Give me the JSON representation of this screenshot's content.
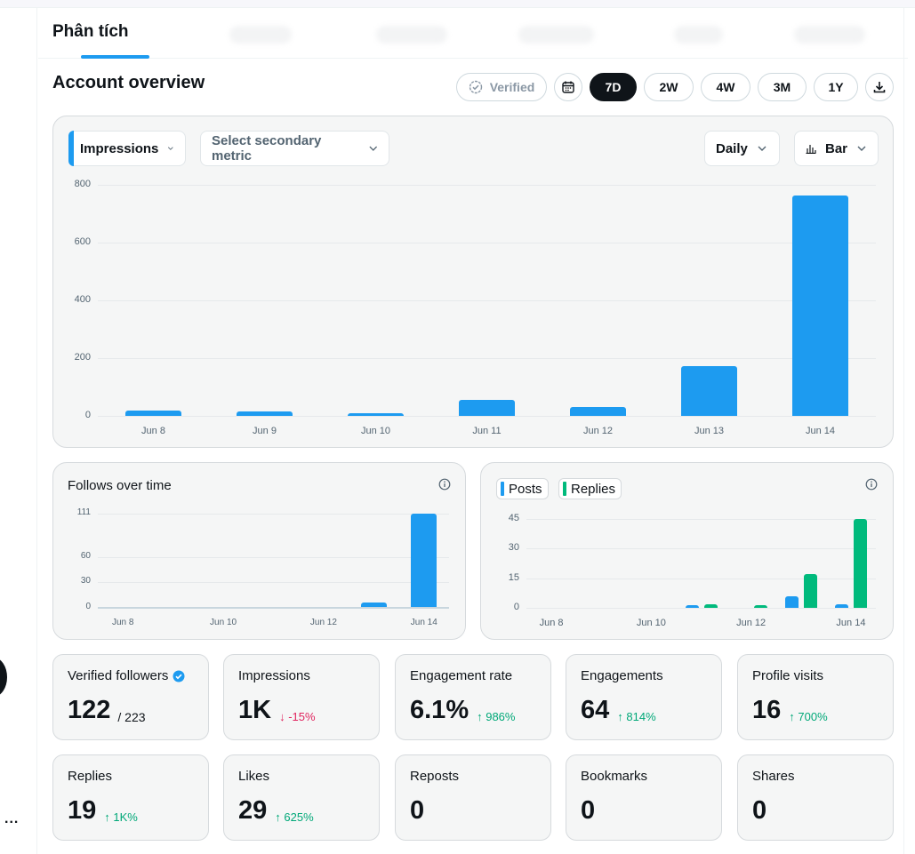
{
  "tabs": {
    "active": "Phân tích"
  },
  "header": {
    "title": "Account overview"
  },
  "controls": {
    "verified_label": "Verified",
    "ranges": [
      "7D",
      "2W",
      "4W",
      "3M",
      "1Y"
    ],
    "selected_range": "7D",
    "icons": {
      "calendar": "calendar-icon",
      "download": "download-icon",
      "verified": "verified-check-icon"
    }
  },
  "main_chart": {
    "primary_metric": "Impressions",
    "secondary_placeholder": "Select secondary metric",
    "interval": "Daily",
    "chart_type_label": "Bar"
  },
  "follows_chart": {
    "title": "Follows over time"
  },
  "posts_chart": {
    "legend": [
      "Posts",
      "Replies"
    ]
  },
  "colors": {
    "accent": "#1d9bf0",
    "replies": "#00ba7c",
    "up": "#00a878",
    "down": "#e0245e"
  },
  "chart_data": [
    {
      "type": "bar",
      "categories": [
        "Jun 8",
        "Jun 9",
        "Jun 10",
        "Jun 11",
        "Jun 12",
        "Jun 13",
        "Jun 14"
      ],
      "values": [
        20,
        15,
        8,
        55,
        30,
        172,
        762
      ],
      "yticks": [
        0,
        200,
        400,
        600,
        800
      ],
      "ylim": [
        0,
        800
      ],
      "grid": true
    },
    {
      "type": "bar",
      "title": "Follows over time",
      "categories": [
        "Jun 8",
        "Jun 9",
        "Jun 10",
        "Jun 11",
        "Jun 12",
        "Jun 13",
        "Jun 14"
      ],
      "xticks": [
        "Jun 8",
        "Jun 10",
        "Jun 12",
        "Jun 14"
      ],
      "values": [
        0,
        0,
        0,
        0,
        0,
        6,
        111
      ],
      "yticks": [
        0,
        30,
        60,
        111
      ],
      "ylim": [
        0,
        111
      ],
      "grid": true
    },
    {
      "type": "bar",
      "categories": [
        "Jun 8",
        "Jun 9",
        "Jun 10",
        "Jun 11",
        "Jun 12",
        "Jun 13",
        "Jun 14"
      ],
      "xticks": [
        "Jun 8",
        "Jun 10",
        "Jun 12",
        "Jun 14"
      ],
      "series": [
        {
          "name": "Posts",
          "values": [
            0,
            0,
            0,
            1,
            0,
            6,
            2
          ]
        },
        {
          "name": "Replies",
          "values": [
            0,
            0,
            0,
            2,
            1,
            17,
            45
          ]
        }
      ],
      "yticks": [
        0,
        15,
        30,
        45
      ],
      "ylim": [
        0,
        45
      ],
      "grid": true
    }
  ],
  "stats": [
    {
      "label": "Verified followers",
      "value": "122",
      "sub": "/ 223",
      "change": "",
      "dir": ""
    },
    {
      "label": "Impressions",
      "value": "1K",
      "sub": "",
      "change": "↓ -15%",
      "dir": "down"
    },
    {
      "label": "Engagement rate",
      "value": "6.1%",
      "sub": "",
      "change": "↑ 986%",
      "dir": "up"
    },
    {
      "label": "Engagements",
      "value": "64",
      "sub": "",
      "change": "↑ 814%",
      "dir": "up"
    },
    {
      "label": "Profile visits",
      "value": "16",
      "sub": "",
      "change": "↑ 700%",
      "dir": "up"
    },
    {
      "label": "Replies",
      "value": "19",
      "sub": "",
      "change": "↑ 1K%",
      "dir": "up"
    },
    {
      "label": "Likes",
      "value": "29",
      "sub": "",
      "change": "↑ 625%",
      "dir": "up"
    },
    {
      "label": "Reposts",
      "value": "0",
      "sub": "",
      "change": "",
      "dir": ""
    },
    {
      "label": "Bookmarks",
      "value": "0",
      "sub": "",
      "change": "",
      "dir": ""
    },
    {
      "label": "Shares",
      "value": "0",
      "sub": "",
      "change": "",
      "dir": ""
    }
  ],
  "rail": {
    "more_label": "..."
  }
}
